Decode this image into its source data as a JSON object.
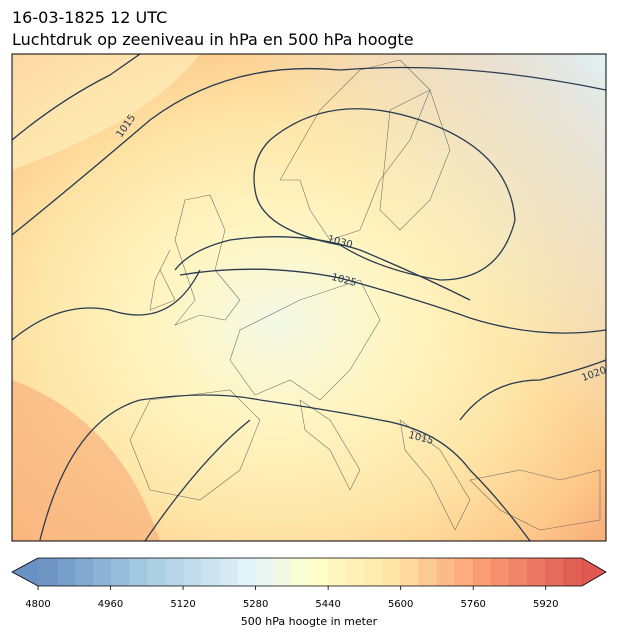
{
  "header": {
    "date": "16-03-1825 12 UTC",
    "title": "Luchtdruk op zeeniveau in hPa en 500 hPa hoogte"
  },
  "map": {
    "contour_labels": [
      "1015",
      "1030",
      "1025",
      "1020",
      "1015"
    ]
  },
  "colorbar": {
    "label": "500 hPa hoogte in meter",
    "lim": [
      4800,
      6000
    ],
    "step": 40,
    "ticks": [
      4800,
      4960,
      5120,
      5280,
      5440,
      5600,
      5760,
      5920
    ]
  }
}
